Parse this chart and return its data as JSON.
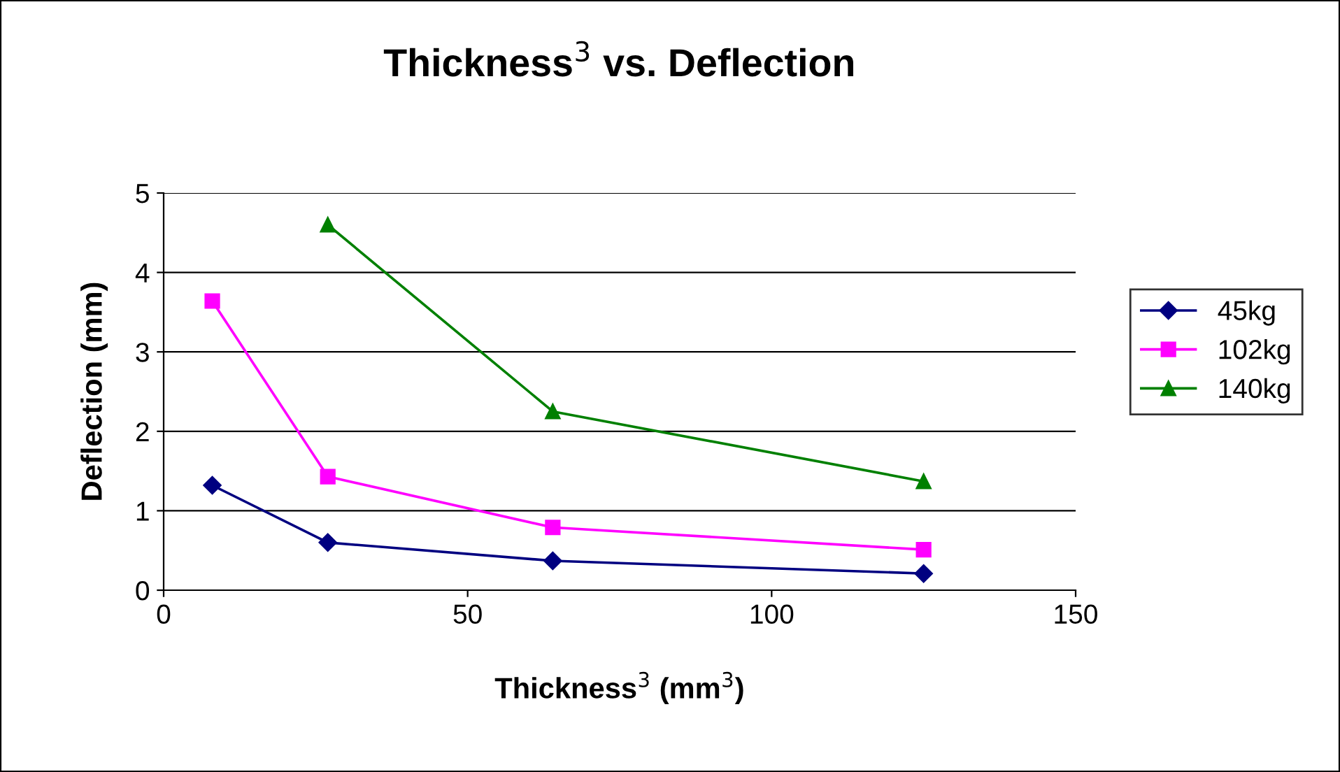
{
  "chart_data": {
    "type": "line",
    "title": "Thickness$^{3}$ vs. Deflection",
    "xlabel": "Thickness$^{3}$ (mm$^{3}$)",
    "ylabel": "Deflection (mm)",
    "x": [
      8,
      27,
      64,
      125
    ],
    "series": [
      {
        "name": "45kg",
        "color": "#000080",
        "marker": "diamond",
        "values": [
          1.32,
          0.6,
          0.37,
          0.21
        ]
      },
      {
        "name": "102kg",
        "color": "#ff00ff",
        "marker": "square",
        "values": [
          3.64,
          1.43,
          0.79,
          0.51
        ]
      },
      {
        "name": "140kg",
        "color": "#008000",
        "marker": "triangle",
        "values": [
          null,
          4.6,
          2.25,
          1.37
        ]
      }
    ],
    "xlim": [
      0,
      150
    ],
    "xticks": [
      0,
      50,
      100,
      150
    ],
    "ylim": [
      0,
      5
    ],
    "yticks": [
      0,
      1,
      2,
      3,
      4,
      5
    ],
    "grid": "y",
    "legend": "right",
    "line_style": "solid"
  }
}
